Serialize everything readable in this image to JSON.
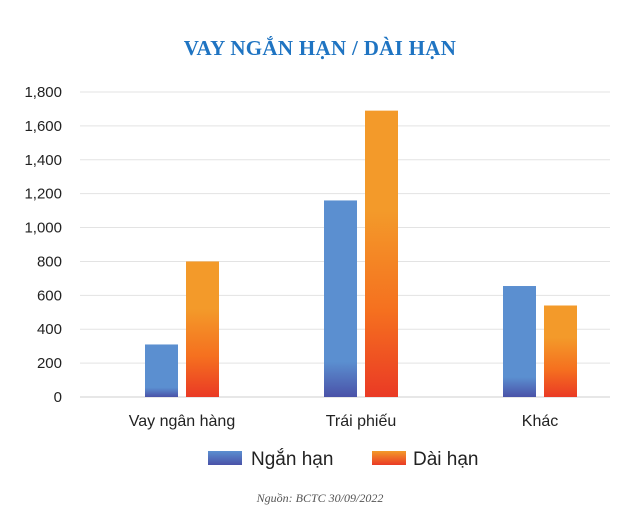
{
  "chart_data": {
    "type": "bar",
    "title": "VAY NGẮN HẠN / DÀI HẠN",
    "categories": [
      "Vay ngân hàng",
      "Trái phiếu",
      "Khác"
    ],
    "series": [
      {
        "name": "Ngắn hạn",
        "values": [
          310,
          1160,
          655
        ],
        "color": "#5b8fd0"
      },
      {
        "name": "Dài hạn",
        "values": [
          800,
          1690,
          540
        ],
        "color": "#f39a2a"
      }
    ],
    "yticks": [
      "0",
      "200",
      "400",
      "600",
      "800",
      "1,000",
      "1,200",
      "1,400",
      "1,600",
      "1,800"
    ],
    "ylim": [
      0,
      1800
    ],
    "grid": true,
    "legend_position": "bottom"
  },
  "source": "Nguồn: BCTC 30/09/2022"
}
